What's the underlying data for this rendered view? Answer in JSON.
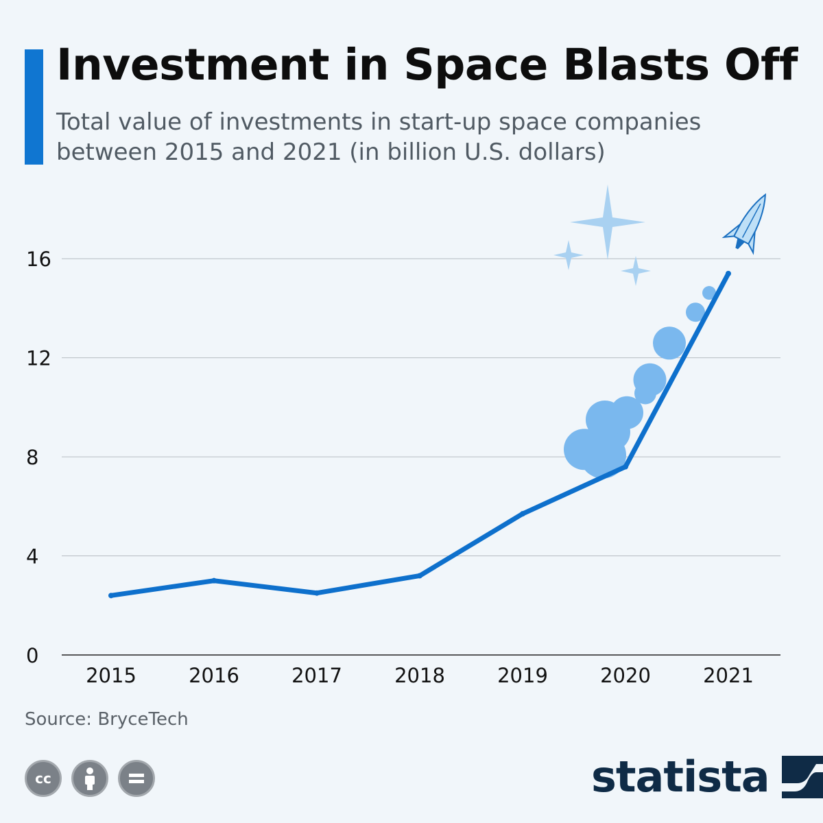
{
  "header": {
    "title": "Investment in Space Blasts Off",
    "subtitle": "Total value of investments in start-up space companies between 2015 and 2021 (in billion U.S. dollars)"
  },
  "footer": {
    "source": "Source: BryceTech",
    "brand": "statista",
    "license_icons": [
      "cc-icon",
      "attribution-icon",
      "no-derivatives-icon"
    ]
  },
  "colors": {
    "accent": "#1076d1",
    "line": "#0e70cc",
    "smoke": "#7ab8ee",
    "sparkle": "#a9d1f1",
    "grid": "#b6bcc2",
    "brand": "#0f2b46"
  },
  "chart_data": {
    "type": "line",
    "title": "Investment in Space Blasts Off",
    "xlabel": "",
    "ylabel": "",
    "categories": [
      "2015",
      "2016",
      "2017",
      "2018",
      "2019",
      "2020",
      "2021"
    ],
    "series": [
      {
        "name": "Investment (billion U.S. dollars)",
        "values": [
          2.4,
          3.0,
          2.5,
          3.2,
          5.7,
          7.6,
          15.4
        ]
      }
    ],
    "yticks": [
      0,
      4,
      8,
      12,
      16
    ],
    "ylim": [
      0,
      18
    ],
    "grid": true,
    "legend": "none",
    "decorations": [
      "rocket",
      "smoke-clouds",
      "sparkles"
    ]
  }
}
